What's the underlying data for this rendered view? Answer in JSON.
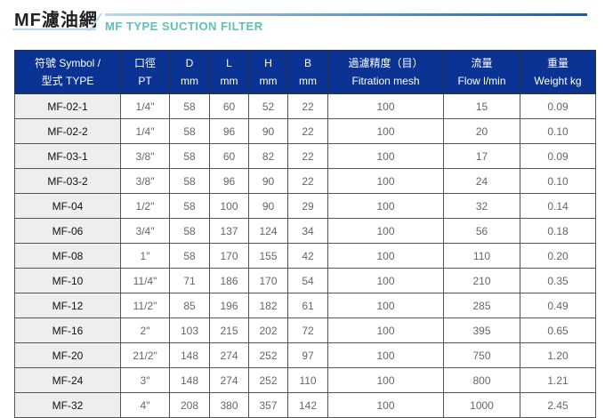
{
  "title": "MF濾油網",
  "subtitle": "MF TYPE SUCTION FILTER",
  "headers": [
    {
      "l1": "符號 Symbol /",
      "l2": "型式 TYPE"
    },
    {
      "l1": "口徑",
      "l2": "PT"
    },
    {
      "l1": "D",
      "l2": "mm"
    },
    {
      "l1": "L",
      "l2": "mm"
    },
    {
      "l1": "H",
      "l2": "mm"
    },
    {
      "l1": "B",
      "l2": "mm"
    },
    {
      "l1": "過濾精度（目）",
      "l2": "Fitration mesh"
    },
    {
      "l1": "流量",
      "l2": "Flow l/min"
    },
    {
      "l1": "重量",
      "l2": "Weight kg"
    }
  ],
  "rows": [
    [
      "MF-02-1",
      "1/4\"",
      "58",
      "60",
      "52",
      "22",
      "100",
      "15",
      "0.09"
    ],
    [
      "MF-02-2",
      "1/4\"",
      "58",
      "96",
      "90",
      "22",
      "100",
      "20",
      "0.10"
    ],
    [
      "MF-03-1",
      "3/8\"",
      "58",
      "60",
      "82",
      "22",
      "100",
      "17",
      "0.09"
    ],
    [
      "MF-03-2",
      "3/8\"",
      "58",
      "96",
      "90",
      "22",
      "100",
      "24",
      "0.10"
    ],
    [
      "MF-04",
      "1/2\"",
      "58",
      "100",
      "90",
      "29",
      "100",
      "32",
      "0.14"
    ],
    [
      "MF-06",
      "3/4\"",
      "58",
      "137",
      "124",
      "34",
      "100",
      "56",
      "0.18"
    ],
    [
      "MF-08",
      "1\"",
      "58",
      "170",
      "155",
      "42",
      "100",
      "110",
      "0.20"
    ],
    [
      "MF-10",
      "11/4\"",
      "71",
      "186",
      "170",
      "54",
      "100",
      "210",
      "0.35"
    ],
    [
      "MF-12",
      "11/2\"",
      "85",
      "196",
      "182",
      "61",
      "100",
      "285",
      "0.49"
    ],
    [
      "MF-16",
      "2\"",
      "103",
      "215",
      "202",
      "72",
      "100",
      "395",
      "0.65"
    ],
    [
      "MF-20",
      "21/2\"",
      "148",
      "274",
      "252",
      "97",
      "100",
      "750",
      "1.20"
    ],
    [
      "MF-24",
      "3\"",
      "148",
      "274",
      "252",
      "110",
      "100",
      "800",
      "1.21"
    ],
    [
      "MF-32",
      "4\"",
      "208",
      "380",
      "357",
      "142",
      "100",
      "1000",
      "2.45"
    ]
  ]
}
